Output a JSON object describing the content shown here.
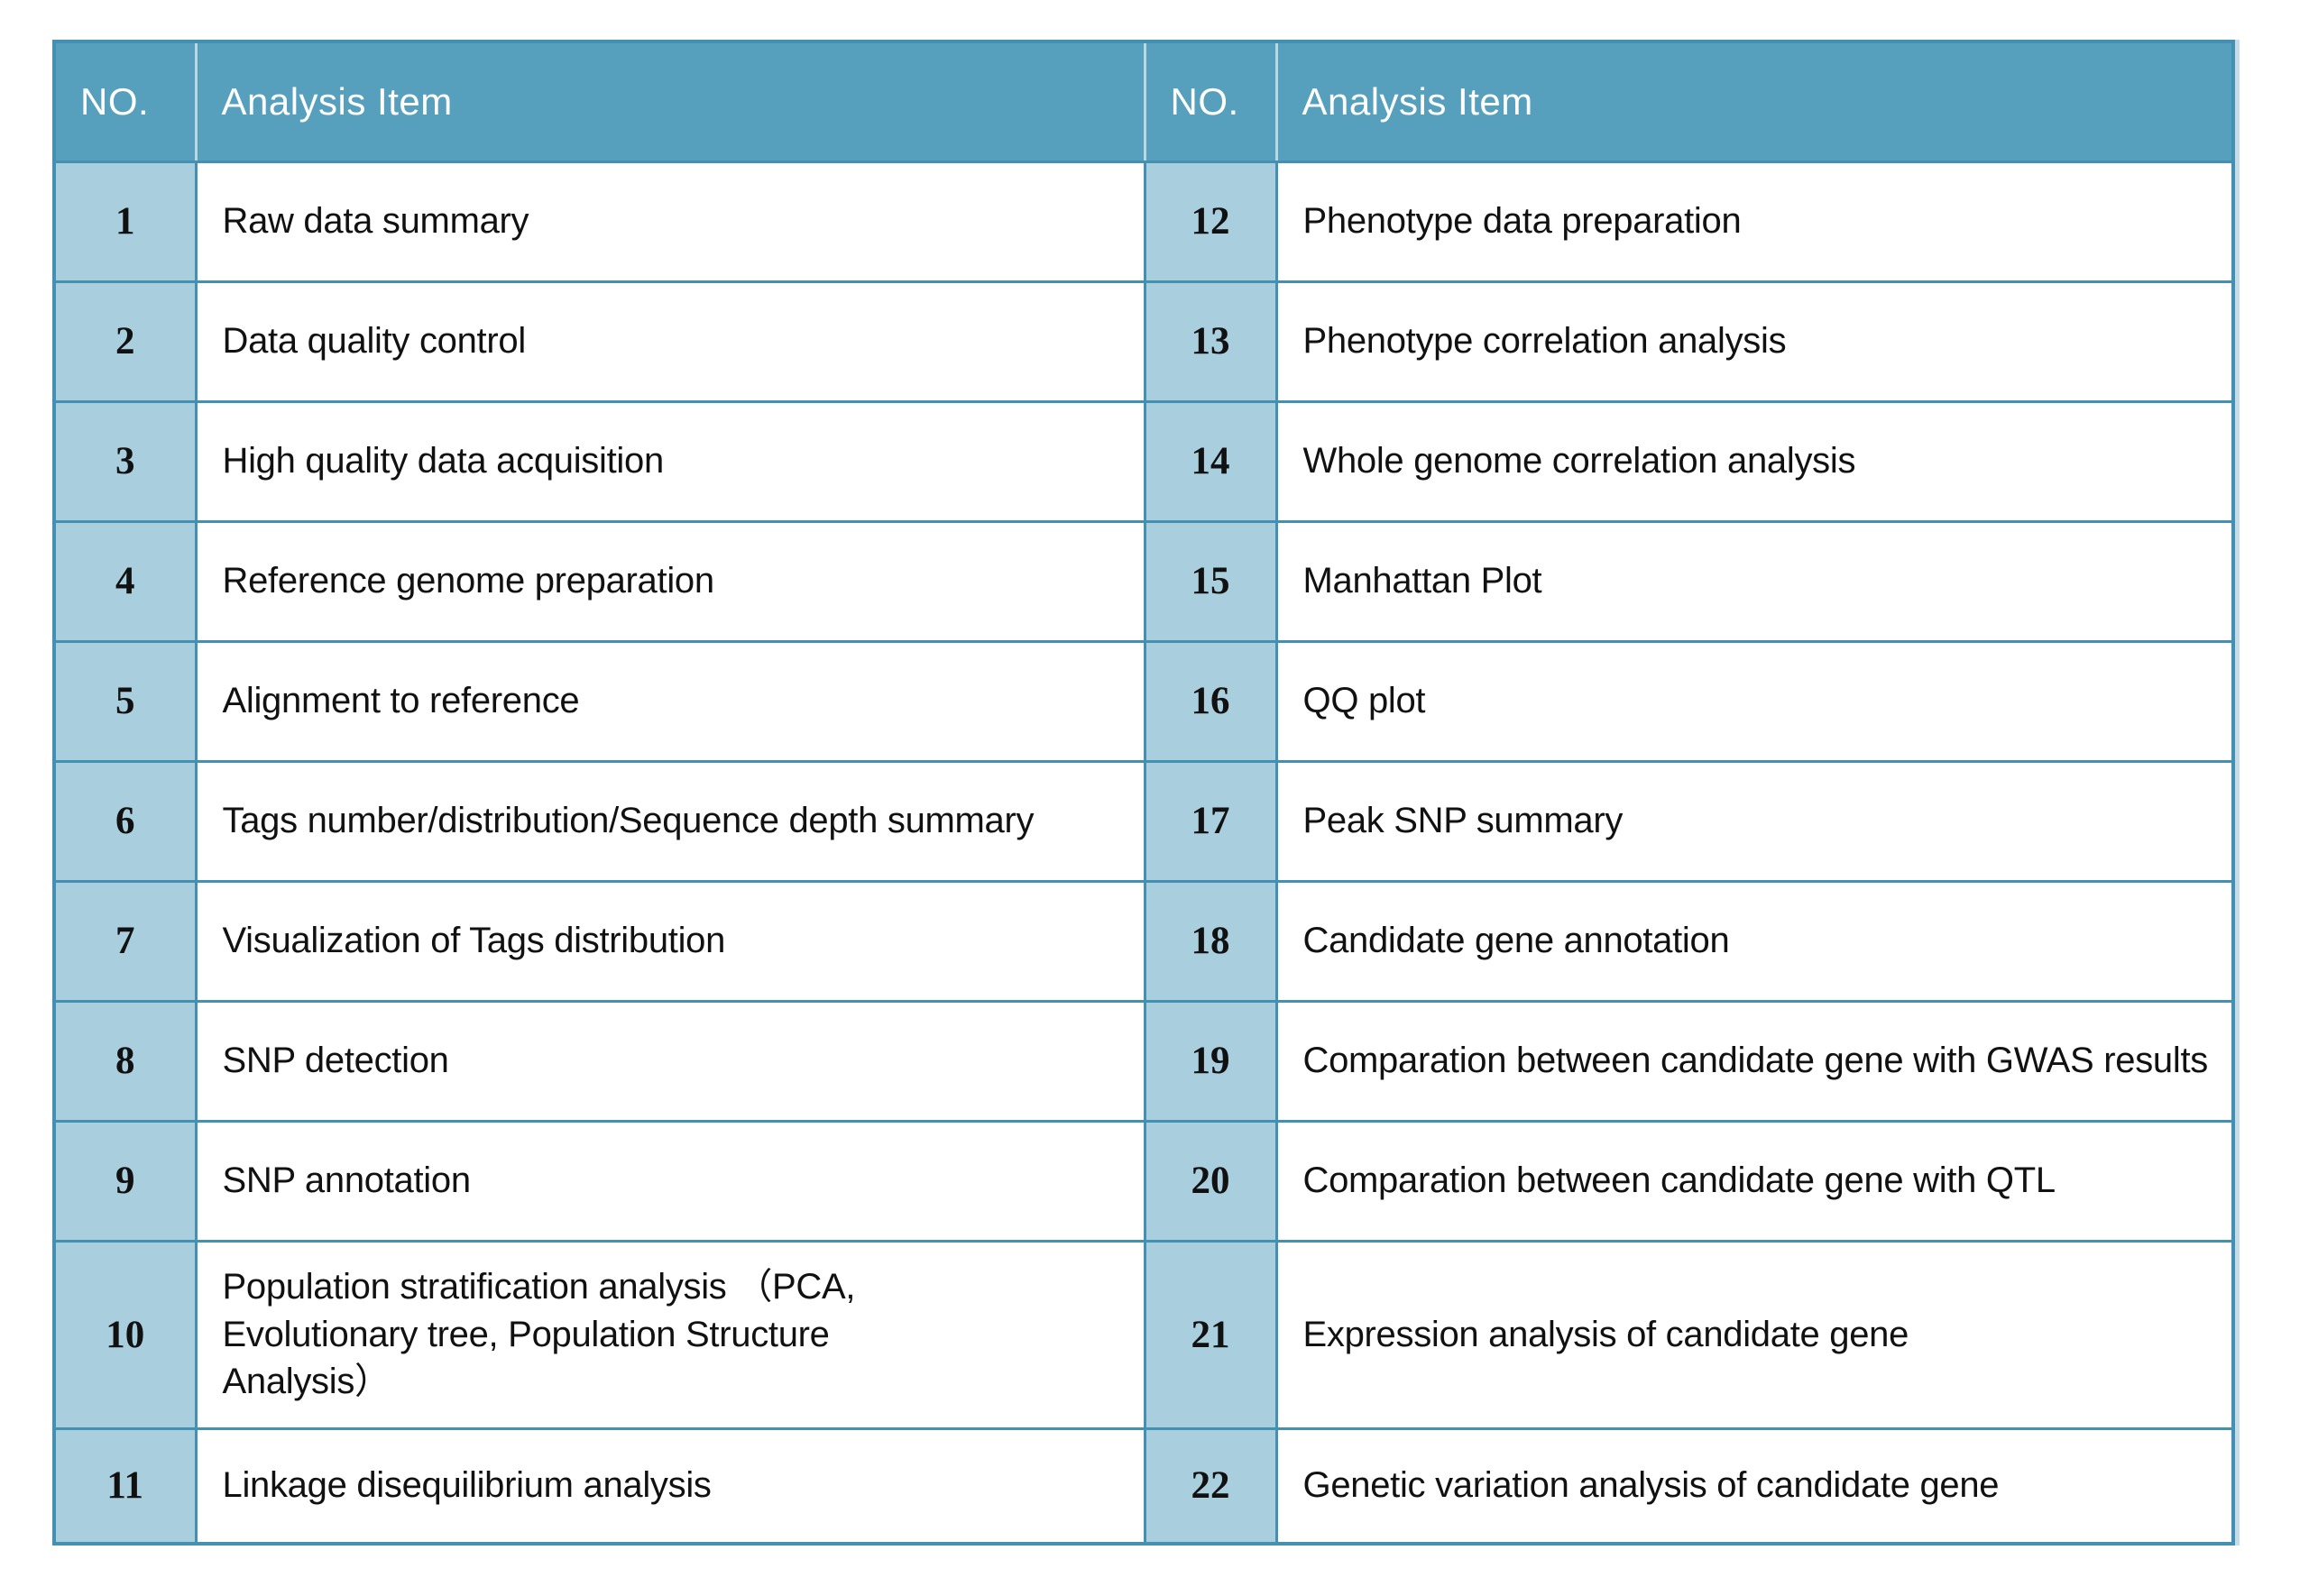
{
  "theme": {
    "page_bg": "#ffffff",
    "header_bg": "#57a0bd",
    "row_no_bg": "#a9cede",
    "grid_border": "#4390b3",
    "header_divider": "#b9d8e4",
    "body_text": "#111111",
    "header_text": "#ffffff",
    "outer_glow": "#c6dde9"
  },
  "table": {
    "headers": [
      "NO.",
      "Analysis Item",
      "NO.",
      "Analysis Item"
    ],
    "left_rows": [
      {
        "no": "1",
        "item": "Raw data summary"
      },
      {
        "no": "2",
        "item": "Data quality control"
      },
      {
        "no": "3",
        "item": "High quality data acquisition"
      },
      {
        "no": "4",
        "item": "Reference genome preparation"
      },
      {
        "no": "5",
        "item": "Alignment to reference"
      },
      {
        "no": "6",
        "item": "Tags number/distribution/Sequence depth summary"
      },
      {
        "no": "7",
        "item": "Visualization of Tags distribution"
      },
      {
        "no": "8",
        "item": "SNP detection"
      },
      {
        "no": "9",
        "item": "SNP annotation"
      },
      {
        "no": "10",
        "item": "Population stratification analysis （PCA,\nEvolutionary tree, Population Structure\nAnalysis）"
      },
      {
        "no": "11",
        "item": "Linkage disequilibrium analysis"
      }
    ],
    "right_rows": [
      {
        "no": "12",
        "item": "Phenotype data preparation"
      },
      {
        "no": "13",
        "item": "Phenotype correlation analysis"
      },
      {
        "no": "14",
        "item": "Whole genome correlation analysis"
      },
      {
        "no": "15",
        "item": "Manhattan Plot"
      },
      {
        "no": "16",
        "item": "QQ plot"
      },
      {
        "no": "17",
        "item": "Peak SNP summary"
      },
      {
        "no": "18",
        "item": "Candidate gene annotation"
      },
      {
        "no": "19",
        "item": "Comparation between candidate gene with GWAS results"
      },
      {
        "no": "20",
        "item": "Comparation between candidate gene with QTL"
      },
      {
        "no": "21",
        "item": "Expression analysis of candidate gene"
      },
      {
        "no": "22",
        "item": "Genetic variation analysis of candidate gene"
      }
    ]
  }
}
